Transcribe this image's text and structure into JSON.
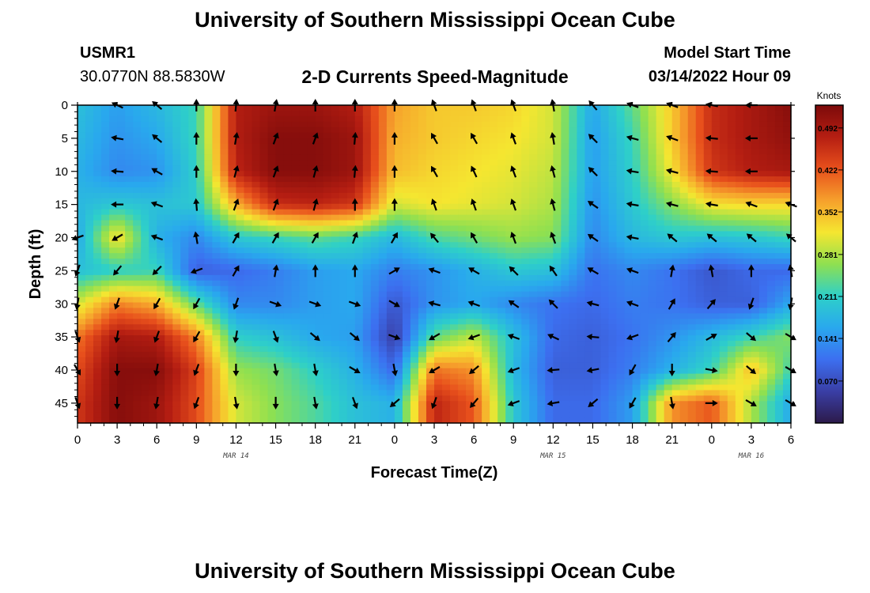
{
  "header": {
    "title": "University of Southern Mississippi Ocean Cube",
    "station_id": "USMR1",
    "station_coords": "30.0770N  88.5830W",
    "plot_title": "2-D Currents Speed-Magnitude",
    "model_start_label": "Model Start Time",
    "model_start_value": "03/14/2022 Hour 09"
  },
  "footer": {
    "title": "University of Southern Mississippi Ocean Cube"
  },
  "chart_data": {
    "type": "heatmap",
    "title": "2-D Currents Speed-Magnitude",
    "xlabel": "Forecast Time(Z)",
    "ylabel": "Depth (ft)",
    "x_hours": [
      0,
      3,
      6,
      9,
      12,
      15,
      18,
      21,
      24,
      27,
      30,
      33,
      36,
      39,
      42,
      45,
      48,
      51,
      54
    ],
    "x_tick_labels": [
      "0",
      "3",
      "6",
      "9",
      "12",
      "15",
      "18",
      "21",
      "0",
      "3",
      "6",
      "9",
      "12",
      "15",
      "18",
      "21",
      "0",
      "3",
      "6"
    ],
    "y_ticks": [
      0,
      5,
      10,
      15,
      20,
      25,
      30,
      35,
      40,
      45
    ],
    "ylim": [
      0,
      48
    ],
    "date_labels": [
      {
        "hour": 12,
        "label": "MAR 14"
      },
      {
        "hour": 36,
        "label": "MAR 15"
      },
      {
        "hour": 51,
        "label": "MAR 16"
      }
    ],
    "colorbar": {
      "title": "Knots",
      "ticks": [
        "0.070",
        "0.141",
        "0.211",
        "0.281",
        "0.352",
        "0.422",
        "0.492"
      ],
      "tick_values": [
        0.07,
        0.141,
        0.211,
        0.281,
        0.352,
        0.422,
        0.492
      ],
      "range": [
        0.0,
        0.53
      ],
      "colors": [
        "#2c1a4a",
        "#3a3fa6",
        "#3c6ff0",
        "#29a8ee",
        "#2ed0c8",
        "#8fe050",
        "#f5e630",
        "#f6a02c",
        "#e8501c",
        "#b51e12",
        "#7c0a0a"
      ]
    },
    "value_units": "Knots",
    "grid_depths": [
      0,
      5,
      10,
      15,
      20,
      25,
      30,
      35,
      40,
      45
    ],
    "grid_values": [
      [
        0.19,
        0.15,
        0.18,
        0.22,
        0.48,
        0.5,
        0.5,
        0.48,
        0.37,
        0.34,
        0.34,
        0.33,
        0.3,
        0.16,
        0.24,
        0.34,
        0.46,
        0.49,
        0.52
      ],
      [
        0.18,
        0.14,
        0.16,
        0.22,
        0.48,
        0.52,
        0.52,
        0.5,
        0.36,
        0.34,
        0.33,
        0.32,
        0.3,
        0.15,
        0.22,
        0.34,
        0.46,
        0.49,
        0.51
      ],
      [
        0.17,
        0.13,
        0.14,
        0.21,
        0.47,
        0.52,
        0.52,
        0.5,
        0.35,
        0.33,
        0.32,
        0.31,
        0.29,
        0.15,
        0.21,
        0.32,
        0.45,
        0.48,
        0.49
      ],
      [
        0.18,
        0.2,
        0.19,
        0.2,
        0.36,
        0.46,
        0.47,
        0.45,
        0.3,
        0.32,
        0.31,
        0.3,
        0.28,
        0.14,
        0.2,
        0.26,
        0.32,
        0.33,
        0.33
      ],
      [
        0.16,
        0.33,
        0.17,
        0.13,
        0.2,
        0.22,
        0.24,
        0.22,
        0.18,
        0.23,
        0.25,
        0.27,
        0.26,
        0.13,
        0.18,
        0.2,
        0.19,
        0.2,
        0.22
      ],
      [
        0.19,
        0.21,
        0.22,
        0.09,
        0.1,
        0.12,
        0.15,
        0.16,
        0.12,
        0.14,
        0.17,
        0.2,
        0.19,
        0.11,
        0.13,
        0.11,
        0.08,
        0.1,
        0.1
      ],
      [
        0.3,
        0.39,
        0.36,
        0.24,
        0.13,
        0.13,
        0.15,
        0.16,
        0.08,
        0.14,
        0.16,
        0.13,
        0.11,
        0.1,
        0.12,
        0.11,
        0.09,
        0.09,
        0.16
      ],
      [
        0.4,
        0.49,
        0.48,
        0.39,
        0.21,
        0.19,
        0.16,
        0.15,
        0.05,
        0.24,
        0.29,
        0.19,
        0.1,
        0.09,
        0.11,
        0.14,
        0.18,
        0.22,
        0.26
      ],
      [
        0.43,
        0.52,
        0.52,
        0.44,
        0.27,
        0.25,
        0.21,
        0.17,
        0.1,
        0.4,
        0.38,
        0.18,
        0.09,
        0.09,
        0.12,
        0.17,
        0.22,
        0.35,
        0.22
      ],
      [
        0.45,
        0.52,
        0.5,
        0.43,
        0.3,
        0.26,
        0.23,
        0.19,
        0.17,
        0.47,
        0.42,
        0.2,
        0.1,
        0.1,
        0.15,
        0.38,
        0.42,
        0.28,
        0.16
      ]
    ],
    "current_vectors_deg": [
      [
        null,
        205,
        220,
        270,
        275,
        280,
        270,
        270,
        270,
        250,
        250,
        250,
        260,
        230,
        200,
        200,
        190,
        180,
        null
      ],
      [
        null,
        190,
        220,
        270,
        280,
        290,
        290,
        275,
        270,
        240,
        240,
        250,
        260,
        225,
        195,
        200,
        185,
        180,
        null
      ],
      [
        null,
        185,
        210,
        270,
        285,
        290,
        285,
        275,
        270,
        240,
        245,
        250,
        255,
        225,
        190,
        195,
        185,
        180,
        null
      ],
      [
        null,
        180,
        200,
        265,
        290,
        290,
        285,
        270,
        270,
        250,
        250,
        250,
        255,
        215,
        190,
        195,
        190,
        200,
        200
      ],
      [
        160,
        150,
        200,
        260,
        300,
        300,
        300,
        290,
        300,
        230,
        240,
        250,
        250,
        215,
        190,
        220,
        220,
        220,
        220
      ],
      [
        110,
        130,
        135,
        160,
        300,
        280,
        270,
        270,
        330,
        200,
        210,
        225,
        235,
        210,
        200,
        280,
        260,
        270,
        260
      ],
      [
        100,
        110,
        120,
        120,
        110,
        20,
        20,
        20,
        30,
        195,
        200,
        215,
        225,
        195,
        200,
        300,
        310,
        110,
        100
      ],
      [
        70,
        100,
        110,
        120,
        100,
        70,
        40,
        40,
        20,
        150,
        160,
        200,
        205,
        185,
        160,
        310,
        330,
        40,
        30
      ],
      [
        60,
        90,
        100,
        110,
        90,
        80,
        80,
        30,
        80,
        150,
        140,
        160,
        175,
        170,
        120,
        90,
        10,
        40,
        30
      ],
      [
        70,
        90,
        100,
        110,
        80,
        90,
        80,
        70,
        140,
        110,
        130,
        160,
        170,
        140,
        120,
        80,
        0,
        30,
        30
      ]
    ]
  }
}
